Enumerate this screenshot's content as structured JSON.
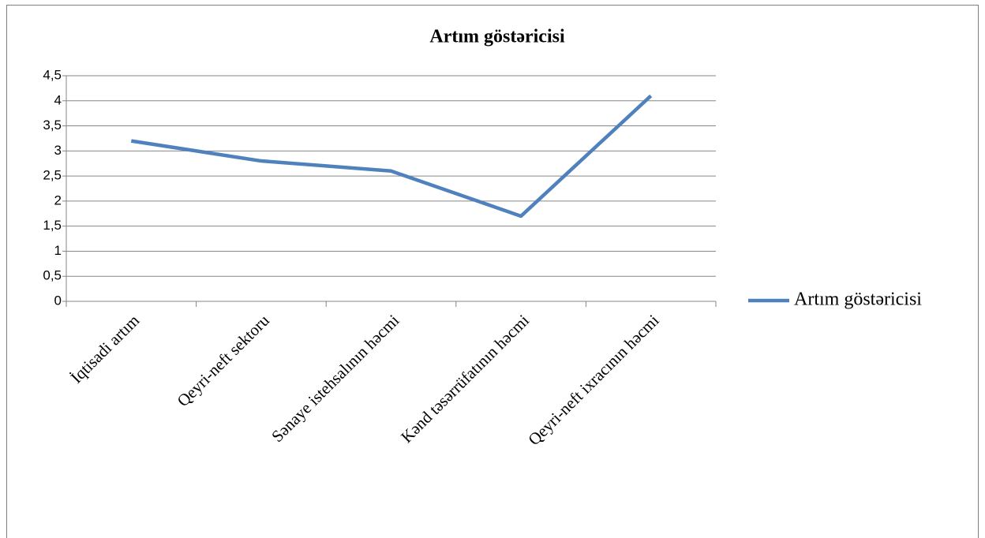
{
  "chart_data": {
    "type": "line",
    "title": "Artım göstəricisi",
    "categories": [
      "İqtisadi artım",
      "Qeyri-neft sektoru",
      "Sənaye istehsalının həcmi",
      "Kənd təsərrüfatının həcmi",
      "Qeyri-neft ixracının həcmi"
    ],
    "series": [
      {
        "name": "Artım göstəricisi",
        "color": "#4f81bd",
        "values": [
          3.2,
          2.8,
          2.6,
          1.7,
          4.1
        ]
      }
    ],
    "ylim": [
      0,
      4.5
    ],
    "yticks": [
      0,
      {
        "value": 0.5,
        "label": "0,5"
      },
      1,
      {
        "value": 1.5,
        "label": "1,5"
      },
      2,
      {
        "value": 2.5,
        "label": "2,5"
      },
      3,
      {
        "value": 3.5,
        "label": "3,5"
      },
      4,
      {
        "value": 4.5,
        "label": "4,5"
      }
    ],
    "grid": true,
    "legend": "right"
  }
}
